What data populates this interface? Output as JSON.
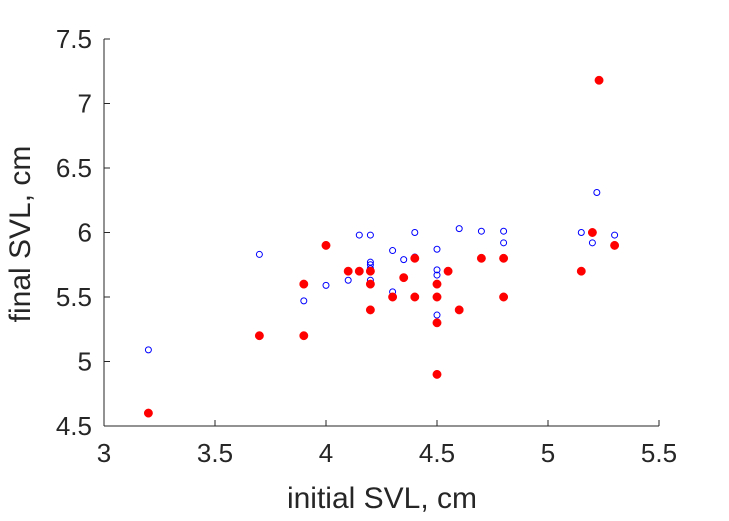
{
  "chart_data": {
    "type": "scatter",
    "title": "",
    "xlabel": "initial SVL, cm",
    "ylabel": "final SVL, cm",
    "xlim": [
      3,
      5.5
    ],
    "ylim": [
      4.5,
      7.5
    ],
    "xticks": [
      3,
      3.5,
      4,
      4.5,
      5,
      5.5
    ],
    "xtick_labels": [
      "3",
      "3.5",
      "4",
      "4.5",
      "5",
      "5.5"
    ],
    "yticks": [
      4.5,
      5,
      5.5,
      6,
      6.5,
      7,
      7.5
    ],
    "ytick_labels": [
      "4.5",
      "5",
      "5.5",
      "6",
      "6.5",
      "7",
      "7.5"
    ],
    "grid": false,
    "legend": "none",
    "series": [
      {
        "marker": "open-circle",
        "color": "#0000ff",
        "points": [
          [
            3.2,
            5.09
          ],
          [
            3.7,
            5.83
          ],
          [
            3.9,
            5.47
          ],
          [
            4.0,
            5.59
          ],
          [
            4.1,
            5.63
          ],
          [
            4.15,
            5.98
          ],
          [
            4.2,
            5.98
          ],
          [
            4.2,
            5.77
          ],
          [
            4.2,
            5.75
          ],
          [
            4.2,
            5.72
          ],
          [
            4.2,
            5.63
          ],
          [
            4.3,
            5.86
          ],
          [
            4.3,
            5.54
          ],
          [
            4.35,
            5.79
          ],
          [
            4.4,
            6.0
          ],
          [
            4.4,
            5.81
          ],
          [
            4.5,
            5.87
          ],
          [
            4.5,
            5.71
          ],
          [
            4.5,
            5.67
          ],
          [
            4.5,
            5.36
          ],
          [
            4.6,
            6.03
          ],
          [
            4.7,
            6.01
          ],
          [
            4.8,
            6.01
          ],
          [
            4.8,
            5.92
          ],
          [
            5.15,
            6.0
          ],
          [
            5.2,
            5.92
          ],
          [
            5.22,
            6.31
          ],
          [
            5.3,
            5.98
          ]
        ]
      },
      {
        "marker": "filled-circle",
        "color": "#ff0000",
        "points": [
          [
            3.2,
            4.6
          ],
          [
            3.7,
            5.2
          ],
          [
            3.9,
            5.6
          ],
          [
            3.9,
            5.2
          ],
          [
            4.0,
            5.9
          ],
          [
            4.1,
            5.7
          ],
          [
            4.15,
            5.7
          ],
          [
            4.2,
            5.7
          ],
          [
            4.2,
            5.6
          ],
          [
            4.2,
            5.4
          ],
          [
            4.3,
            5.5
          ],
          [
            4.35,
            5.65
          ],
          [
            4.4,
            5.8
          ],
          [
            4.4,
            5.5
          ],
          [
            4.5,
            5.6
          ],
          [
            4.5,
            5.5
          ],
          [
            4.5,
            5.3
          ],
          [
            4.5,
            4.9
          ],
          [
            4.55,
            5.7
          ],
          [
            4.6,
            5.4
          ],
          [
            4.7,
            5.8
          ],
          [
            4.8,
            5.8
          ],
          [
            4.8,
            5.5
          ],
          [
            5.15,
            5.7
          ],
          [
            5.2,
            6.0
          ],
          [
            5.23,
            7.18
          ],
          [
            5.3,
            5.9
          ]
        ]
      }
    ]
  }
}
